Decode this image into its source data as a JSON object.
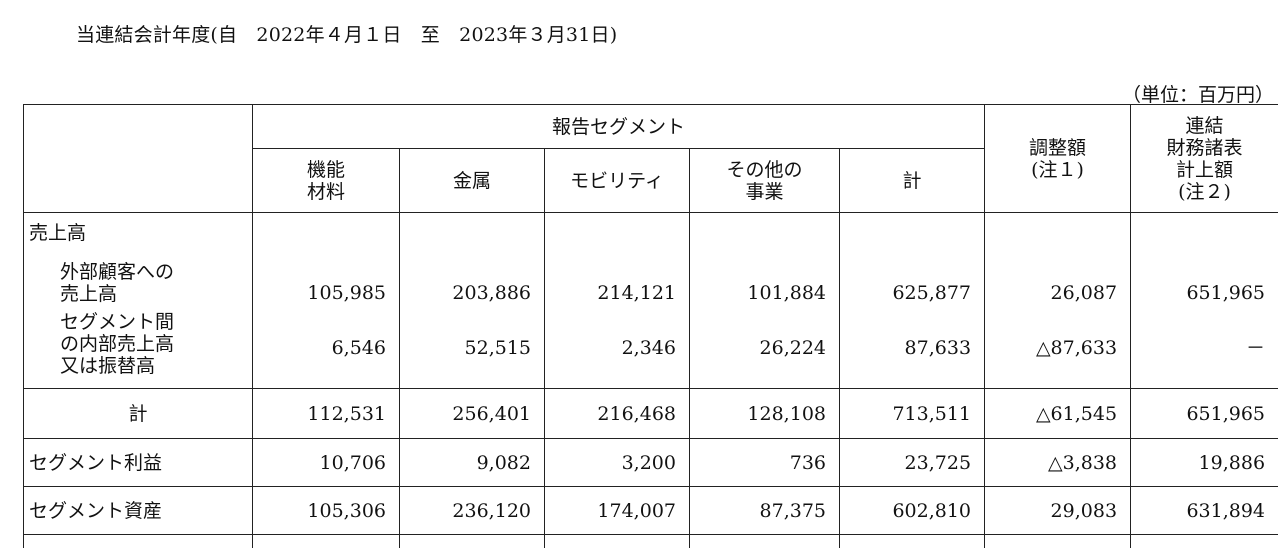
{
  "period_text": "当連結会計年度(自　2022年４月１日　至　2023年３月31日)",
  "unit_text": "（単位：百万円）",
  "header": {
    "reportable_segments": "報告セグメント",
    "columns": [
      "機能\n材料",
      "金属",
      "モビリティ",
      "その他の\n事業",
      "計"
    ],
    "adjustment": "調整額\n(注１)",
    "consolidated": "連結\n財務諸表\n計上額\n(注２)"
  },
  "rows": {
    "sales_title": "売上高",
    "external": {
      "label": "外部顧客への\n売上高",
      "values": [
        "105,985",
        "203,886",
        "214,121",
        "101,884",
        "625,877",
        "26,087",
        "651,965"
      ]
    },
    "intersegment": {
      "label": "セグメント間\nの内部売上高\n又は振替高",
      "values": [
        "6,546",
        "52,515",
        "2,346",
        "26,224",
        "87,633",
        "△87,633",
        "－"
      ]
    },
    "total": {
      "label": "計",
      "values": [
        "112,531",
        "256,401",
        "216,468",
        "128,108",
        "713,511",
        "△61,545",
        "651,965"
      ]
    },
    "profit": {
      "label": "セグメント利益",
      "values": [
        "10,706",
        "9,082",
        "3,200",
        "736",
        "23,725",
        "△3,838",
        "19,886"
      ]
    },
    "assets": {
      "label": "セグメント資産",
      "values": [
        "105,306",
        "236,120",
        "174,007",
        "87,375",
        "602,810",
        "29,083",
        "631,894"
      ]
    }
  }
}
